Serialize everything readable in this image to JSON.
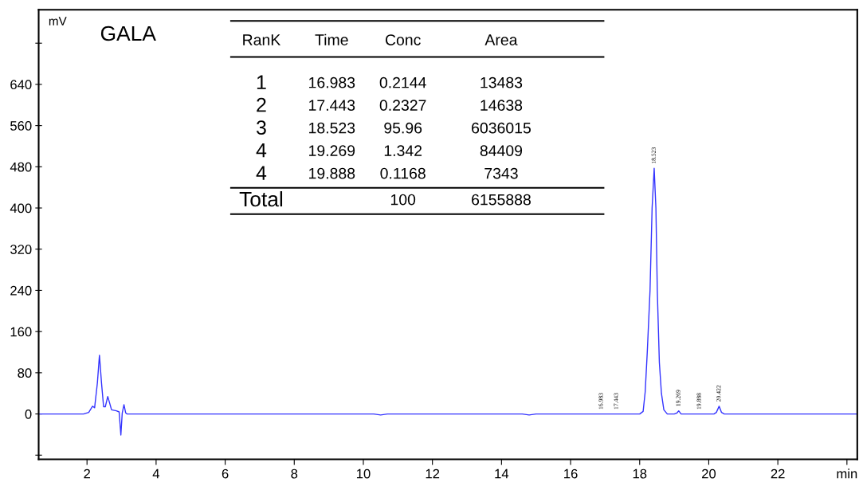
{
  "chart_data": {
    "type": "line",
    "title": "GALA",
    "ylabel": "mV",
    "x": [
      0.6,
      1.9,
      2.05,
      2.16,
      2.22,
      2.3,
      2.36,
      2.42,
      2.48,
      2.53,
      2.6,
      2.66,
      2.71,
      2.85,
      2.93,
      2.98,
      3.02,
      3.07,
      3.12,
      3.16,
      10.3,
      10.5,
      10.7,
      14.6,
      14.8,
      15.0,
      18.0,
      18.1,
      18.16,
      18.22,
      18.3,
      18.36,
      18.42,
      18.47,
      18.51,
      18.57,
      18.63,
      18.7,
      18.8,
      19.0,
      19.08,
      19.13,
      19.2,
      20.15,
      20.22,
      20.3,
      20.37,
      20.45,
      24.3
    ],
    "series": [
      {
        "color": "#3333ff",
        "values": [
          0,
          0,
          3,
          15,
          12,
          60,
          114,
          60,
          14,
          14,
          34,
          20,
          8,
          6,
          4,
          -41,
          2,
          18,
          2,
          0,
          0,
          -2,
          0,
          0,
          -2,
          0,
          0,
          5,
          43,
          120,
          240,
          400,
          477,
          400,
          240,
          100,
          40,
          8,
          0,
          0,
          2,
          6,
          0,
          0,
          3,
          15,
          3,
          0,
          0
        ]
      }
    ],
    "annotations": [
      {
        "text": "16.983",
        "x": 16.89,
        "y": 0
      },
      {
        "text": "17.443",
        "x": 17.33,
        "y": 0
      },
      {
        "text": "18.523",
        "x": 18.42,
        "y": 477
      },
      {
        "text": "19.269",
        "x": 19.13,
        "y": 6
      },
      {
        "text": "19.888",
        "x": 19.73,
        "y": 0
      },
      {
        "text": "20.422",
        "x": 20.3,
        "y": 15
      },
      "RanK\tTime\tConc\tArea",
      "1\t16.983\t0.2144\t13483",
      "2\t17.443\t0.2327\t14638",
      "3\t18.523\t95.96\t6036015",
      "4\t19.269\t1.342\t84409",
      "4\t19.888\t0.1168\t7343",
      "Total\t\t100\t6155888"
    ],
    "xlim": [
      0.6,
      24.3
    ],
    "ylim": [
      -88,
      785
    ],
    "xticks": [
      2,
      4,
      6,
      8,
      10,
      12,
      14,
      16,
      18,
      20,
      22,
      {
        "value": 24,
        "label": "min"
      }
    ],
    "yticks": [
      {
        "value": -80,
        "label": null
      },
      0,
      80,
      160,
      240,
      320,
      400,
      480,
      560,
      640,
      {
        "value": 720,
        "label": null
      }
    ],
    "grid": false,
    "legend": false
  }
}
